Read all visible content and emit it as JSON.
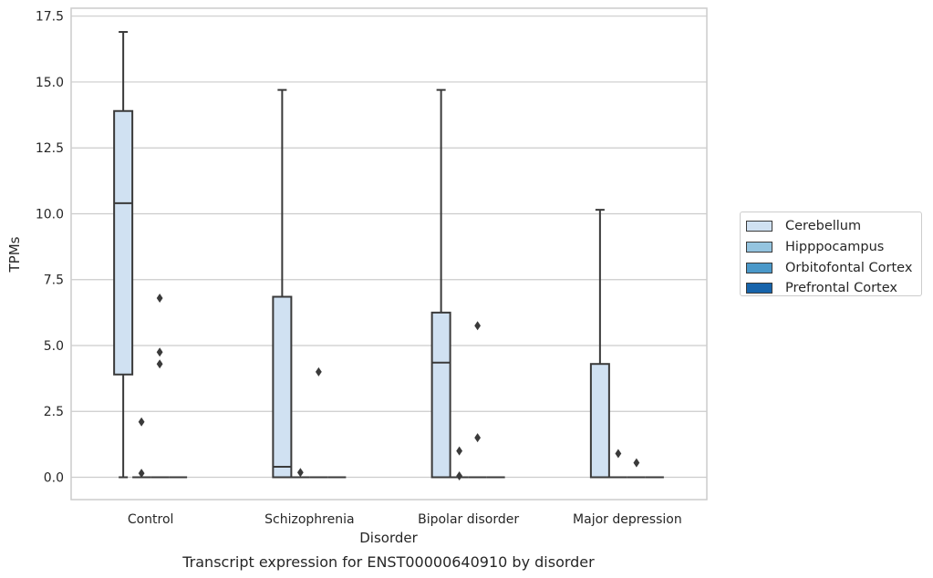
{
  "chart_data": {
    "type": "box",
    "title": "Transcript expression for ENST00000640910 by disorder",
    "xlabel": "Disorder",
    "ylabel": "TPMs",
    "ylim": [
      -0.8,
      17.7
    ],
    "yticks": [
      "0.0",
      "2.5",
      "5.0",
      "7.5",
      "10.0",
      "12.5",
      "15.0",
      "17.5"
    ],
    "ytick_values": [
      0,
      2.5,
      5,
      7.5,
      10,
      12.5,
      15,
      17.5
    ],
    "grid": true,
    "legend_position": "right",
    "categories": [
      "Control",
      "Schizophrenia",
      "Bipolar disorder",
      "Major depression"
    ],
    "series": [
      {
        "name": "Cerebellum",
        "color": "#d0e1f2",
        "boxes": [
          {
            "whislo": 0,
            "q1": 3.9,
            "med": 10.4,
            "q3": 13.9,
            "whishi": 16.9,
            "fliers": []
          },
          {
            "whislo": 0,
            "q1": 0,
            "med": 0.4,
            "q3": 6.85,
            "whishi": 14.7,
            "fliers": []
          },
          {
            "whislo": 0,
            "q1": 0,
            "med": 4.35,
            "q3": 6.25,
            "whishi": 14.7,
            "fliers": []
          },
          {
            "whislo": 0,
            "q1": 0,
            "med": 0,
            "q3": 4.3,
            "whishi": 10.15,
            "fliers": []
          }
        ]
      },
      {
        "name": "Hipppocampus",
        "color": "#94c4df",
        "boxes": [
          {
            "whislo": 0,
            "q1": 0,
            "med": 0,
            "q3": 0,
            "whishi": 0,
            "fliers": [
              2.1,
              0.15
            ]
          },
          {
            "whislo": 0,
            "q1": 0,
            "med": 0,
            "q3": 0,
            "whishi": 0,
            "fliers": [
              0.18
            ]
          },
          {
            "whislo": 0,
            "q1": 0,
            "med": 0,
            "q3": 0,
            "whishi": 0,
            "fliers": [
              1.0,
              0.05
            ]
          },
          {
            "whislo": 0,
            "q1": 0,
            "med": 0,
            "q3": 0,
            "whishi": 0,
            "fliers": [
              0.9
            ]
          }
        ]
      },
      {
        "name": "Orbitofontal Cortex",
        "color": "#4a98c9",
        "boxes": [
          {
            "whislo": 0,
            "q1": 0,
            "med": 0,
            "q3": 0,
            "whishi": 0,
            "fliers": [
              6.8,
              4.75,
              4.3
            ]
          },
          {
            "whislo": 0,
            "q1": 0,
            "med": 0,
            "q3": 0,
            "whishi": 0,
            "fliers": [
              4.0
            ]
          },
          {
            "whislo": 0,
            "q1": 0,
            "med": 0,
            "q3": 0,
            "whishi": 0,
            "fliers": [
              5.75,
              1.5
            ]
          },
          {
            "whislo": 0,
            "q1": 0,
            "med": 0,
            "q3": 0,
            "whishi": 0,
            "fliers": [
              0.55
            ]
          }
        ]
      },
      {
        "name": "Prefrontal Cortex",
        "color": "#1764ab",
        "boxes": [
          {
            "whislo": 0,
            "q1": 0,
            "med": 0,
            "q3": 0,
            "whishi": 0,
            "fliers": []
          },
          {
            "whislo": 0,
            "q1": 0,
            "med": 0,
            "q3": 0,
            "whishi": 0,
            "fliers": []
          },
          {
            "whislo": 0,
            "q1": 0,
            "med": 0,
            "q3": 0,
            "whishi": 0,
            "fliers": []
          },
          {
            "whislo": 0,
            "q1": 0,
            "med": 0,
            "q3": 0,
            "whishi": 0,
            "fliers": []
          }
        ]
      }
    ],
    "style": {
      "box_edge": "#3a3a3a",
      "grid_color": "#cccccc",
      "frame_color": "#cccccc"
    }
  }
}
